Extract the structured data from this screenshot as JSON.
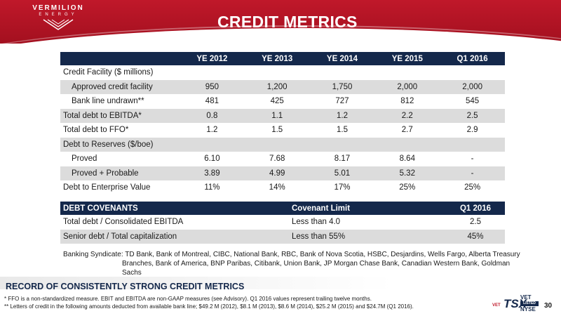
{
  "header": {
    "logo_name": "VERMILION",
    "logo_sub": "ENERGY",
    "title": "CREDIT METRICS",
    "colors": {
      "header_red": "#c0182a",
      "navy": "#14284b",
      "row_alt": "#dcdcdc"
    }
  },
  "metrics": {
    "columns": [
      "YE 2012",
      "YE 2013",
      "YE 2014",
      "YE 2015",
      "Q1 2016"
    ],
    "rows": [
      {
        "label": "Credit Facility ($ millions)",
        "indent": false,
        "values": [
          "",
          "",
          "",
          "",
          ""
        ]
      },
      {
        "label": "Approved credit facility",
        "indent": true,
        "values": [
          "950",
          "1,200",
          "1,750",
          "2,000",
          "2,000"
        ]
      },
      {
        "label": "Bank line undrawn**",
        "indent": true,
        "values": [
          "481",
          "425",
          "727",
          "812",
          "545"
        ]
      },
      {
        "label": "Total debt to EBITDA*",
        "indent": false,
        "values": [
          "0.8",
          "1.1",
          "1.2",
          "2.2",
          "2.5"
        ]
      },
      {
        "label": "Total debt to FFO*",
        "indent": false,
        "values": [
          "1.2",
          "1.5",
          "1.5",
          "2.7",
          "2.9"
        ]
      },
      {
        "label": "Debt to Reserves ($/boe)",
        "indent": false,
        "values": [
          "",
          "",
          "",
          "",
          ""
        ]
      },
      {
        "label": "Proved",
        "indent": true,
        "values": [
          "6.10",
          "7.68",
          "8.17",
          "8.64",
          "-"
        ]
      },
      {
        "label": "Proved + Probable",
        "indent": true,
        "values": [
          "3.89",
          "4.99",
          "5.01",
          "5.32",
          "-"
        ]
      },
      {
        "label": "Debt to Enterprise Value",
        "indent": false,
        "values": [
          "11%",
          "14%",
          "17%",
          "25%",
          "25%"
        ]
      }
    ]
  },
  "covenants": {
    "headers": [
      "DEBT COVENANTS",
      "Covenant Limit",
      "Q1 2016"
    ],
    "rows": [
      {
        "label": "Total debt / Consolidated EBITDA",
        "limit": "Less than 4.0",
        "value": "2.5"
      },
      {
        "label": "Senior debt / Total capitalization",
        "limit": "Less than 55%",
        "value": "45%"
      }
    ]
  },
  "syndicate": {
    "line1": "Banking Syndicate: TD Bank, Bank of Montreal, CIBC, National Bank, RBC, Bank of Nova Scotia, HSBC, Desjardins, Wells Fargo, Alberta Treasury",
    "line2": "Branches, Bank of America, BNP Paribas, Citibank, Union Bank, JP Morgan Chase Bank, Canadian Western Bank, Goldman Sachs"
  },
  "footer": {
    "headline": "RECORD OF CONSISTENTLY STRONG CREDIT METRICS",
    "note1": "*  FFO is a non-standardized measure.  EBIT and EBITDA are non-GAAP measures (see Advisory). Q1 2016 values represent trailing twelve months.",
    "note2": "** Letters of credit in the following amounts deducted from available bank line; $49.2 M (2012), $8.1 M (2013), $8.6 M (2014), $25.2 M (2015) and $24.7M (Q1 2016).",
    "ticker_left": "VET",
    "ticker_tsx": "TSX",
    "ticker_right_top": "VET",
    "ticker_listed": "LISTED",
    "ticker_right_bottom": "NYSE",
    "page_number": "30"
  }
}
